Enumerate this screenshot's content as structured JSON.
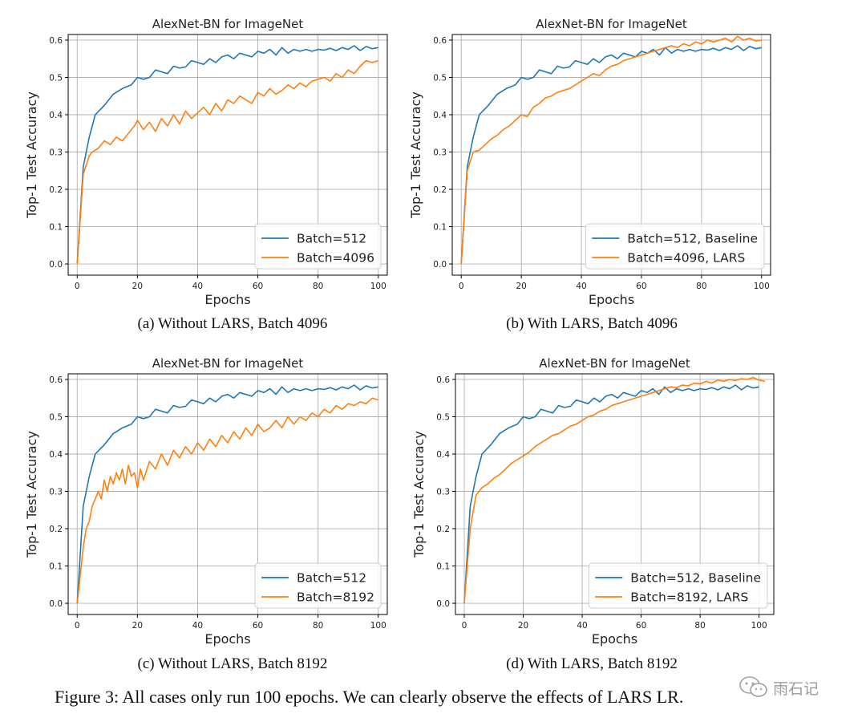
{
  "figure_caption": "Figure 3: All cases only run 100 epochs. We can clearly observe the effects of LARS LR.",
  "watermark": {
    "icon": "wechat-icon",
    "text": "雨石记"
  },
  "colors": {
    "blue": "#1f77b4",
    "orange": "#ff7f0e",
    "grid": "#b0b0b0"
  },
  "panels": [
    {
      "caption": "(a) Without LARS, Batch 4096"
    },
    {
      "caption": "(b) With LARS, Batch 4096"
    },
    {
      "caption": "(c) Without LARS, Batch 8192"
    },
    {
      "caption": "(d) With LARS, Batch 8192"
    }
  ],
  "chart_data": [
    {
      "type": "line",
      "title": "AlexNet-BN for ImageNet",
      "xlabel": "Epochs",
      "ylabel": "Top-1 Test Accuracy",
      "xlim": [
        -3,
        103
      ],
      "ylim": [
        -0.03,
        0.615
      ],
      "xticks": [
        0,
        20,
        40,
        60,
        80,
        100
      ],
      "yticks": [
        0.0,
        0.1,
        0.2,
        0.3,
        0.4,
        0.5,
        0.6
      ],
      "grid": true,
      "legend": "lower-right",
      "series": [
        {
          "name": "Batch=512",
          "color": "#1f77b4",
          "x": [
            0,
            2,
            4,
            6,
            9,
            12,
            15,
            18,
            20,
            22,
            24,
            26,
            28,
            30,
            32,
            34,
            36,
            38,
            40,
            42,
            44,
            46,
            48,
            50,
            52,
            54,
            56,
            58,
            60,
            62,
            64,
            66,
            68,
            70,
            72,
            74,
            76,
            78,
            80,
            82,
            84,
            86,
            88,
            90,
            92,
            94,
            96,
            98,
            100
          ],
          "y": [
            0.0,
            0.26,
            0.34,
            0.4,
            0.425,
            0.455,
            0.47,
            0.48,
            0.5,
            0.495,
            0.5,
            0.52,
            0.515,
            0.51,
            0.53,
            0.525,
            0.528,
            0.545,
            0.54,
            0.535,
            0.55,
            0.54,
            0.555,
            0.56,
            0.55,
            0.565,
            0.56,
            0.555,
            0.57,
            0.565,
            0.575,
            0.56,
            0.58,
            0.565,
            0.575,
            0.57,
            0.575,
            0.57,
            0.575,
            0.573,
            0.578,
            0.572,
            0.58,
            0.575,
            0.585,
            0.572,
            0.583,
            0.577,
            0.58
          ]
        },
        {
          "name": "Batch=4096",
          "color": "#ff7f0e",
          "x": [
            0,
            2,
            4,
            5,
            7,
            9,
            11,
            13,
            15,
            17,
            19,
            20,
            22,
            24,
            26,
            28,
            30,
            32,
            34,
            36,
            38,
            40,
            42,
            44,
            46,
            48,
            50,
            52,
            54,
            56,
            58,
            60,
            62,
            64,
            66,
            68,
            70,
            72,
            74,
            76,
            78,
            80,
            82,
            84,
            86,
            88,
            90,
            92,
            94,
            96,
            98,
            100
          ],
          "y": [
            0.0,
            0.24,
            0.29,
            0.3,
            0.31,
            0.33,
            0.32,
            0.34,
            0.33,
            0.35,
            0.37,
            0.385,
            0.36,
            0.38,
            0.355,
            0.39,
            0.37,
            0.4,
            0.375,
            0.41,
            0.39,
            0.405,
            0.42,
            0.4,
            0.43,
            0.41,
            0.44,
            0.43,
            0.45,
            0.44,
            0.43,
            0.46,
            0.45,
            0.47,
            0.455,
            0.465,
            0.48,
            0.47,
            0.485,
            0.475,
            0.49,
            0.495,
            0.5,
            0.49,
            0.51,
            0.5,
            0.52,
            0.51,
            0.53,
            0.545,
            0.54,
            0.545
          ]
        }
      ]
    },
    {
      "type": "line",
      "title": "AlexNet-BN for ImageNet",
      "xlabel": "Epochs",
      "ylabel": "Top-1 Test Accuracy",
      "xlim": [
        -3,
        103
      ],
      "ylim": [
        -0.03,
        0.615
      ],
      "xticks": [
        0,
        20,
        40,
        60,
        80,
        100
      ],
      "yticks": [
        0.0,
        0.1,
        0.2,
        0.3,
        0.4,
        0.5,
        0.6
      ],
      "grid": true,
      "legend": "lower-right",
      "series": [
        {
          "name": "Batch=512, Baseline",
          "color": "#1f77b4",
          "x": [
            0,
            2,
            4,
            6,
            9,
            12,
            15,
            18,
            20,
            22,
            24,
            26,
            28,
            30,
            32,
            34,
            36,
            38,
            40,
            42,
            44,
            46,
            48,
            50,
            52,
            54,
            56,
            58,
            60,
            62,
            64,
            66,
            68,
            70,
            72,
            74,
            76,
            78,
            80,
            82,
            84,
            86,
            88,
            90,
            92,
            94,
            96,
            98,
            100
          ],
          "y": [
            0.0,
            0.26,
            0.34,
            0.4,
            0.425,
            0.455,
            0.47,
            0.48,
            0.5,
            0.495,
            0.5,
            0.52,
            0.515,
            0.51,
            0.53,
            0.525,
            0.528,
            0.545,
            0.54,
            0.535,
            0.55,
            0.54,
            0.555,
            0.56,
            0.55,
            0.565,
            0.56,
            0.555,
            0.57,
            0.565,
            0.575,
            0.56,
            0.58,
            0.565,
            0.575,
            0.57,
            0.575,
            0.57,
            0.575,
            0.573,
            0.578,
            0.572,
            0.58,
            0.575,
            0.585,
            0.572,
            0.583,
            0.577,
            0.58
          ]
        },
        {
          "name": "Batch=4096, LARS",
          "color": "#ff7f0e",
          "x": [
            0,
            2,
            4,
            6,
            8,
            10,
            12,
            14,
            16,
            18,
            20,
            22,
            24,
            26,
            28,
            30,
            32,
            34,
            36,
            38,
            40,
            42,
            44,
            46,
            48,
            50,
            52,
            54,
            56,
            58,
            60,
            62,
            64,
            66,
            68,
            70,
            72,
            74,
            76,
            78,
            80,
            82,
            84,
            86,
            88,
            90,
            92,
            94,
            96,
            98,
            100
          ],
          "y": [
            0.0,
            0.25,
            0.3,
            0.305,
            0.32,
            0.335,
            0.345,
            0.36,
            0.37,
            0.385,
            0.4,
            0.395,
            0.42,
            0.43,
            0.445,
            0.45,
            0.46,
            0.465,
            0.47,
            0.48,
            0.49,
            0.5,
            0.51,
            0.505,
            0.52,
            0.53,
            0.535,
            0.545,
            0.55,
            0.555,
            0.56,
            0.565,
            0.57,
            0.575,
            0.58,
            0.585,
            0.58,
            0.59,
            0.585,
            0.595,
            0.59,
            0.6,
            0.595,
            0.6,
            0.605,
            0.595,
            0.61,
            0.6,
            0.605,
            0.598,
            0.6
          ]
        }
      ]
    },
    {
      "type": "line",
      "title": "AlexNet-BN for ImageNet",
      "xlabel": "Epochs",
      "ylabel": "Top-1 Test Accuracy",
      "xlim": [
        -3,
        103
      ],
      "ylim": [
        -0.03,
        0.615
      ],
      "xticks": [
        0,
        20,
        40,
        60,
        80,
        100
      ],
      "yticks": [
        0.0,
        0.1,
        0.2,
        0.3,
        0.4,
        0.5,
        0.6
      ],
      "grid": true,
      "legend": "lower-right",
      "series": [
        {
          "name": "Batch=512",
          "color": "#1f77b4",
          "x": [
            0,
            2,
            4,
            6,
            9,
            12,
            15,
            18,
            20,
            22,
            24,
            26,
            28,
            30,
            32,
            34,
            36,
            38,
            40,
            42,
            44,
            46,
            48,
            50,
            52,
            54,
            56,
            58,
            60,
            62,
            64,
            66,
            68,
            70,
            72,
            74,
            76,
            78,
            80,
            82,
            84,
            86,
            88,
            90,
            92,
            94,
            96,
            98,
            100
          ],
          "y": [
            0.0,
            0.26,
            0.34,
            0.4,
            0.425,
            0.455,
            0.47,
            0.48,
            0.5,
            0.495,
            0.5,
            0.52,
            0.515,
            0.51,
            0.53,
            0.525,
            0.528,
            0.545,
            0.54,
            0.535,
            0.55,
            0.54,
            0.555,
            0.56,
            0.55,
            0.565,
            0.56,
            0.555,
            0.57,
            0.565,
            0.575,
            0.56,
            0.58,
            0.565,
            0.575,
            0.57,
            0.575,
            0.57,
            0.575,
            0.573,
            0.578,
            0.572,
            0.58,
            0.575,
            0.585,
            0.572,
            0.583,
            0.577,
            0.58
          ]
        },
        {
          "name": "Batch=8192",
          "color": "#ff7f0e",
          "x": [
            0,
            2,
            3,
            4,
            5,
            6,
            7,
            8,
            9,
            10,
            11,
            12,
            13,
            14,
            15,
            16,
            17,
            18,
            19,
            20,
            21,
            22,
            24,
            26,
            28,
            30,
            32,
            34,
            36,
            38,
            40,
            42,
            44,
            46,
            48,
            50,
            52,
            54,
            56,
            58,
            60,
            62,
            64,
            66,
            68,
            70,
            72,
            74,
            76,
            78,
            80,
            82,
            84,
            86,
            88,
            90,
            92,
            94,
            96,
            98,
            100
          ],
          "y": [
            0.0,
            0.15,
            0.2,
            0.22,
            0.26,
            0.28,
            0.3,
            0.28,
            0.33,
            0.3,
            0.34,
            0.32,
            0.35,
            0.33,
            0.36,
            0.32,
            0.37,
            0.34,
            0.35,
            0.31,
            0.36,
            0.33,
            0.38,
            0.36,
            0.4,
            0.37,
            0.41,
            0.39,
            0.42,
            0.4,
            0.43,
            0.41,
            0.44,
            0.42,
            0.45,
            0.43,
            0.46,
            0.44,
            0.47,
            0.45,
            0.48,
            0.46,
            0.47,
            0.49,
            0.47,
            0.5,
            0.48,
            0.5,
            0.49,
            0.51,
            0.5,
            0.52,
            0.51,
            0.53,
            0.52,
            0.535,
            0.53,
            0.54,
            0.535,
            0.55,
            0.545
          ]
        }
      ]
    },
    {
      "type": "line",
      "title": "AlexNet-BN for ImageNet",
      "xlabel": "Epochs",
      "ylabel": "Top-1 Test Accuracy",
      "xlim": [
        -3,
        105
      ],
      "ylim": [
        -0.03,
        0.615
      ],
      "xticks": [
        0,
        20,
        40,
        60,
        80,
        100
      ],
      "yticks": [
        0.0,
        0.1,
        0.2,
        0.3,
        0.4,
        0.5,
        0.6
      ],
      "grid": true,
      "legend": "lower-right",
      "series": [
        {
          "name": "Batch=512, Baseline",
          "color": "#1f77b4",
          "x": [
            0,
            2,
            4,
            6,
            9,
            12,
            15,
            18,
            20,
            22,
            24,
            26,
            28,
            30,
            32,
            34,
            36,
            38,
            40,
            42,
            44,
            46,
            48,
            50,
            52,
            54,
            56,
            58,
            60,
            62,
            64,
            66,
            68,
            70,
            72,
            74,
            76,
            78,
            80,
            82,
            84,
            86,
            88,
            90,
            92,
            94,
            96,
            98,
            100
          ],
          "y": [
            0.0,
            0.26,
            0.34,
            0.4,
            0.425,
            0.455,
            0.47,
            0.48,
            0.5,
            0.495,
            0.5,
            0.52,
            0.515,
            0.51,
            0.53,
            0.525,
            0.528,
            0.545,
            0.54,
            0.535,
            0.55,
            0.54,
            0.555,
            0.56,
            0.55,
            0.565,
            0.56,
            0.555,
            0.57,
            0.565,
            0.575,
            0.56,
            0.58,
            0.565,
            0.575,
            0.57,
            0.575,
            0.57,
            0.575,
            0.573,
            0.578,
            0.572,
            0.58,
            0.575,
            0.585,
            0.572,
            0.583,
            0.577,
            0.58
          ]
        },
        {
          "name": "Batch=8192, LARS",
          "color": "#ff7f0e",
          "x": [
            0,
            2,
            4,
            6,
            8,
            10,
            12,
            14,
            16,
            18,
            20,
            22,
            24,
            26,
            28,
            30,
            32,
            34,
            36,
            38,
            40,
            42,
            44,
            46,
            48,
            50,
            52,
            54,
            56,
            58,
            60,
            62,
            64,
            66,
            68,
            70,
            72,
            74,
            76,
            78,
            80,
            82,
            84,
            86,
            88,
            90,
            92,
            94,
            96,
            98,
            100,
            102
          ],
          "y": [
            0.0,
            0.2,
            0.29,
            0.31,
            0.32,
            0.335,
            0.345,
            0.36,
            0.375,
            0.385,
            0.395,
            0.405,
            0.42,
            0.43,
            0.44,
            0.45,
            0.455,
            0.465,
            0.475,
            0.48,
            0.49,
            0.5,
            0.505,
            0.515,
            0.52,
            0.53,
            0.535,
            0.54,
            0.545,
            0.55,
            0.555,
            0.56,
            0.565,
            0.57,
            0.575,
            0.58,
            0.578,
            0.585,
            0.583,
            0.59,
            0.588,
            0.595,
            0.59,
            0.598,
            0.595,
            0.6,
            0.597,
            0.602,
            0.6,
            0.605,
            0.598,
            0.595
          ]
        }
      ]
    }
  ]
}
